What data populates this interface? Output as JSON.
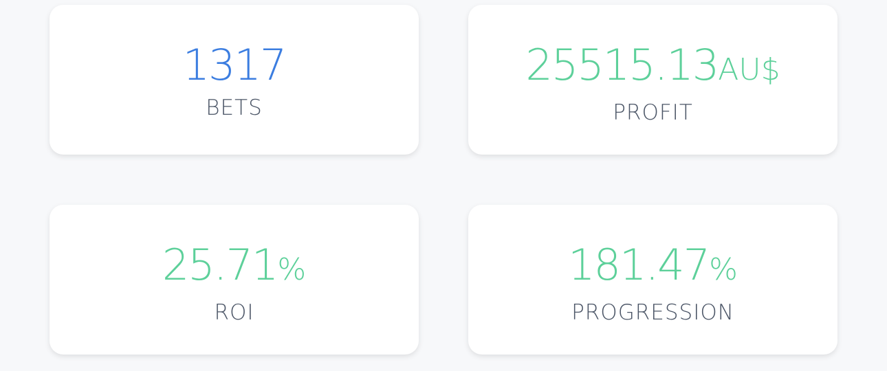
{
  "cards": [
    {
      "value": "1317",
      "label": "BETS",
      "color": "#3b7de0"
    },
    {
      "value": "25515.13",
      "unit": "AU$",
      "label": "PROFIT",
      "color": "#5dd09a"
    },
    {
      "value": "25.71",
      "unit": "%",
      "label": "ROI",
      "color": "#5dd09a"
    },
    {
      "value": "181.47",
      "unit": "%",
      "label": "PROGRESSION",
      "color": "#5dd09a"
    }
  ]
}
